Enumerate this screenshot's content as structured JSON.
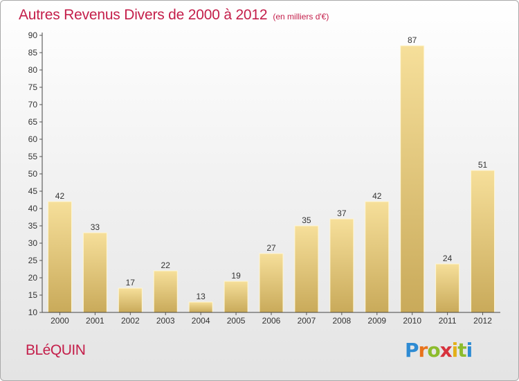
{
  "header": {
    "title": "Autres Revenus Divers de 2000 à 2012",
    "subtitle": "(en milliers d'€)"
  },
  "footer": {
    "place": "BLéQUIN",
    "brand": "Proxiti"
  },
  "colors": {
    "title": "#c41e4a",
    "bar_light": "#f6df9a",
    "bar_dark": "#c9aa5a",
    "bar_edge": "#fff6d2"
  },
  "chart_data": {
    "type": "bar",
    "title": "Autres Revenus Divers de 2000 à 2012",
    "subtitle": "(en milliers d'€)",
    "xlabel": "",
    "ylabel": "",
    "ylim": [
      10,
      90
    ],
    "yticks": [
      10,
      15,
      20,
      25,
      30,
      35,
      40,
      45,
      50,
      55,
      60,
      65,
      70,
      75,
      80,
      85,
      90
    ],
    "grid": false,
    "categories": [
      "2000",
      "2001",
      "2002",
      "2003",
      "2004",
      "2005",
      "2006",
      "2007",
      "2008",
      "2009",
      "2010",
      "2011",
      "2012"
    ],
    "values": [
      42,
      33,
      17,
      22,
      13,
      19,
      27,
      35,
      37,
      42,
      87,
      24,
      51
    ]
  }
}
